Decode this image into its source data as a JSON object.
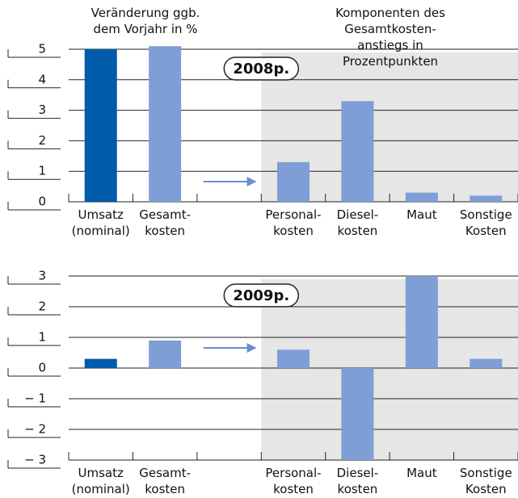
{
  "chart_data": [
    {
      "type": "bar",
      "title": "2008p.",
      "annotations": [
        "Veränderung ggb.\ndem Vorjahr in %",
        "Komponenten des Gesamtkosten-\nanstiegs in Prozentpunkten"
      ],
      "categories": [
        "Umsatz\n(nominal)",
        "Gesamt-\nkosten",
        null,
        "Personal-\nkosten",
        "Diesel-\nkosten",
        "Maut",
        "Sonstige\nKosten"
      ],
      "values": [
        5.0,
        5.1,
        null,
        1.3,
        3.3,
        0.3,
        0.2
      ],
      "colors": [
        "#005bab",
        "#7f9ed6",
        null,
        "#7f9ed6",
        "#7f9ed6",
        "#7f9ed6",
        "#7f9ed6"
      ],
      "ylim": [
        0,
        5
      ],
      "yticks": [
        0,
        1,
        2,
        3,
        4,
        5
      ],
      "grid": true
    },
    {
      "type": "bar",
      "title": "2009p.",
      "categories": [
        "Umsatz\n(nominal)",
        "Gesamt-\nkosten",
        null,
        "Personal-\nkosten",
        "Diesel-\nkosten",
        "Maut",
        "Sonstige\nKosten"
      ],
      "values": [
        0.3,
        0.9,
        null,
        0.6,
        -3.0,
        3.0,
        0.3
      ],
      "colors": [
        "#005bab",
        "#7f9ed6",
        null,
        "#7f9ed6",
        "#7f9ed6",
        "#7f9ed6",
        "#7f9ed6"
      ],
      "ylim": [
        -3,
        3
      ],
      "yticks": [
        {
          "value": -3,
          "label": "− 3"
        },
        {
          "value": -2,
          "label": "− 2"
        },
        {
          "value": -1,
          "label": "− 1"
        },
        0,
        1,
        2,
        3
      ],
      "grid": true
    }
  ]
}
